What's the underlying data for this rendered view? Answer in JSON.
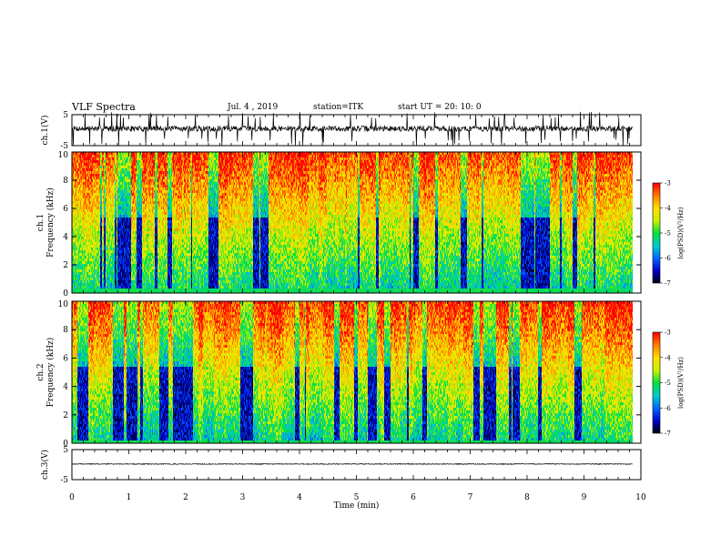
{
  "header": {
    "title": "VLF Spectra",
    "date": "Jul. 4 , 2019",
    "station": "station=ITK",
    "start": "start UT =   20: 10: 0"
  },
  "colors": {
    "spectrogram_scale": [
      "#000000",
      "#0000cc",
      "#0066ff",
      "#00cccc",
      "#00e040",
      "#c8f000",
      "#ffe000",
      "#ff8000",
      "#ff0000",
      "#ffffff"
    ],
    "trace": "#000000"
  },
  "chart_data": [
    {
      "type": "line",
      "name": "ch1-waveform",
      "ylabel": "ch.1(V)",
      "ylim": [
        -5,
        5
      ],
      "yticks": [
        "5",
        "-5"
      ],
      "xlim": [
        0,
        10
      ],
      "trace_level": 0.5,
      "noise_amplitude": 0.9,
      "spike_amplitude": 5
    },
    {
      "type": "heatmap",
      "name": "ch1-spectrogram",
      "ylabel_line1": "ch.1",
      "ylabel_line2": "Frequency  (kHz)",
      "ylim": [
        0,
        10
      ],
      "yticks": [
        "0",
        "2",
        "4",
        "6",
        "8",
        "10"
      ],
      "xlim": [
        0,
        10
      ],
      "data_end_min": 9.85,
      "colorbar": {
        "label": "log(PSD)(V²/Hz)",
        "range": [
          -7,
          -3
        ],
        "ticks": [
          "-3",
          "-4",
          "-5",
          "-6",
          "-7"
        ]
      },
      "seed": 17
    },
    {
      "type": "heatmap",
      "name": "ch2-spectrogram",
      "ylabel_line1": "ch.2",
      "ylabel_line2": "Frequency  (kHz)",
      "ylim": [
        0,
        10
      ],
      "yticks": [
        "0",
        "2",
        "4",
        "6",
        "8",
        "10"
      ],
      "xlim": [
        0,
        10
      ],
      "data_end_min": 9.85,
      "colorbar": {
        "label": "log(PSD)(V²/Hz)",
        "range": [
          -7,
          -3
        ],
        "ticks": [
          "-3",
          "-4",
          "-5",
          "-6",
          "-7"
        ]
      },
      "seed": 41
    },
    {
      "type": "line",
      "name": "ch3-waveform",
      "ylabel": "ch.3(V)",
      "ylim": [
        -5,
        5
      ],
      "yticks": [
        "5",
        "-5"
      ],
      "xlim": [
        0,
        10
      ],
      "trace_level": 0.2,
      "noise_amplitude": 0.15,
      "xlabel": "Time  (min)",
      "xticks": [
        "0",
        "1",
        "2",
        "3",
        "4",
        "5",
        "6",
        "7",
        "8",
        "9",
        "10"
      ]
    }
  ]
}
